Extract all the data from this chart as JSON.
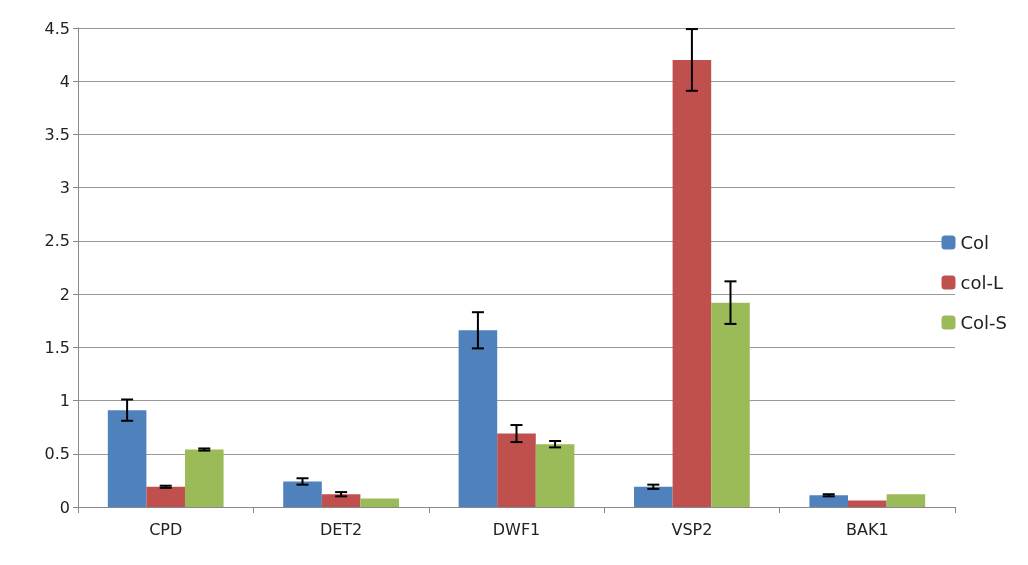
{
  "chart_data": {
    "type": "bar",
    "categories": [
      "CPD",
      "DET2",
      "DWF1",
      "VSP2",
      "BAK1"
    ],
    "series": [
      {
        "name": "Col",
        "color": "#4f81bd",
        "values": [
          0.91,
          0.24,
          1.66,
          0.19,
          0.11
        ],
        "errors": [
          0.1,
          0.03,
          0.17,
          0.02,
          0.01
        ]
      },
      {
        "name": "col-L",
        "color": "#c0504d",
        "values": [
          0.19,
          0.12,
          0.69,
          4.2,
          0.06
        ],
        "errors": [
          0.01,
          0.02,
          0.08,
          0.29,
          null
        ]
      },
      {
        "name": "Col-S",
        "color": "#9bbb59",
        "values": [
          0.54,
          0.08,
          0.59,
          1.92,
          0.12
        ],
        "errors": [
          0.01,
          null,
          0.03,
          0.2,
          null
        ]
      }
    ],
    "ylim": [
      0,
      4.5
    ],
    "yticks": [
      0,
      0.5,
      1,
      1.5,
      2,
      2.5,
      3,
      3.5,
      4,
      4.5
    ],
    "grid": "y",
    "legend": "right"
  }
}
